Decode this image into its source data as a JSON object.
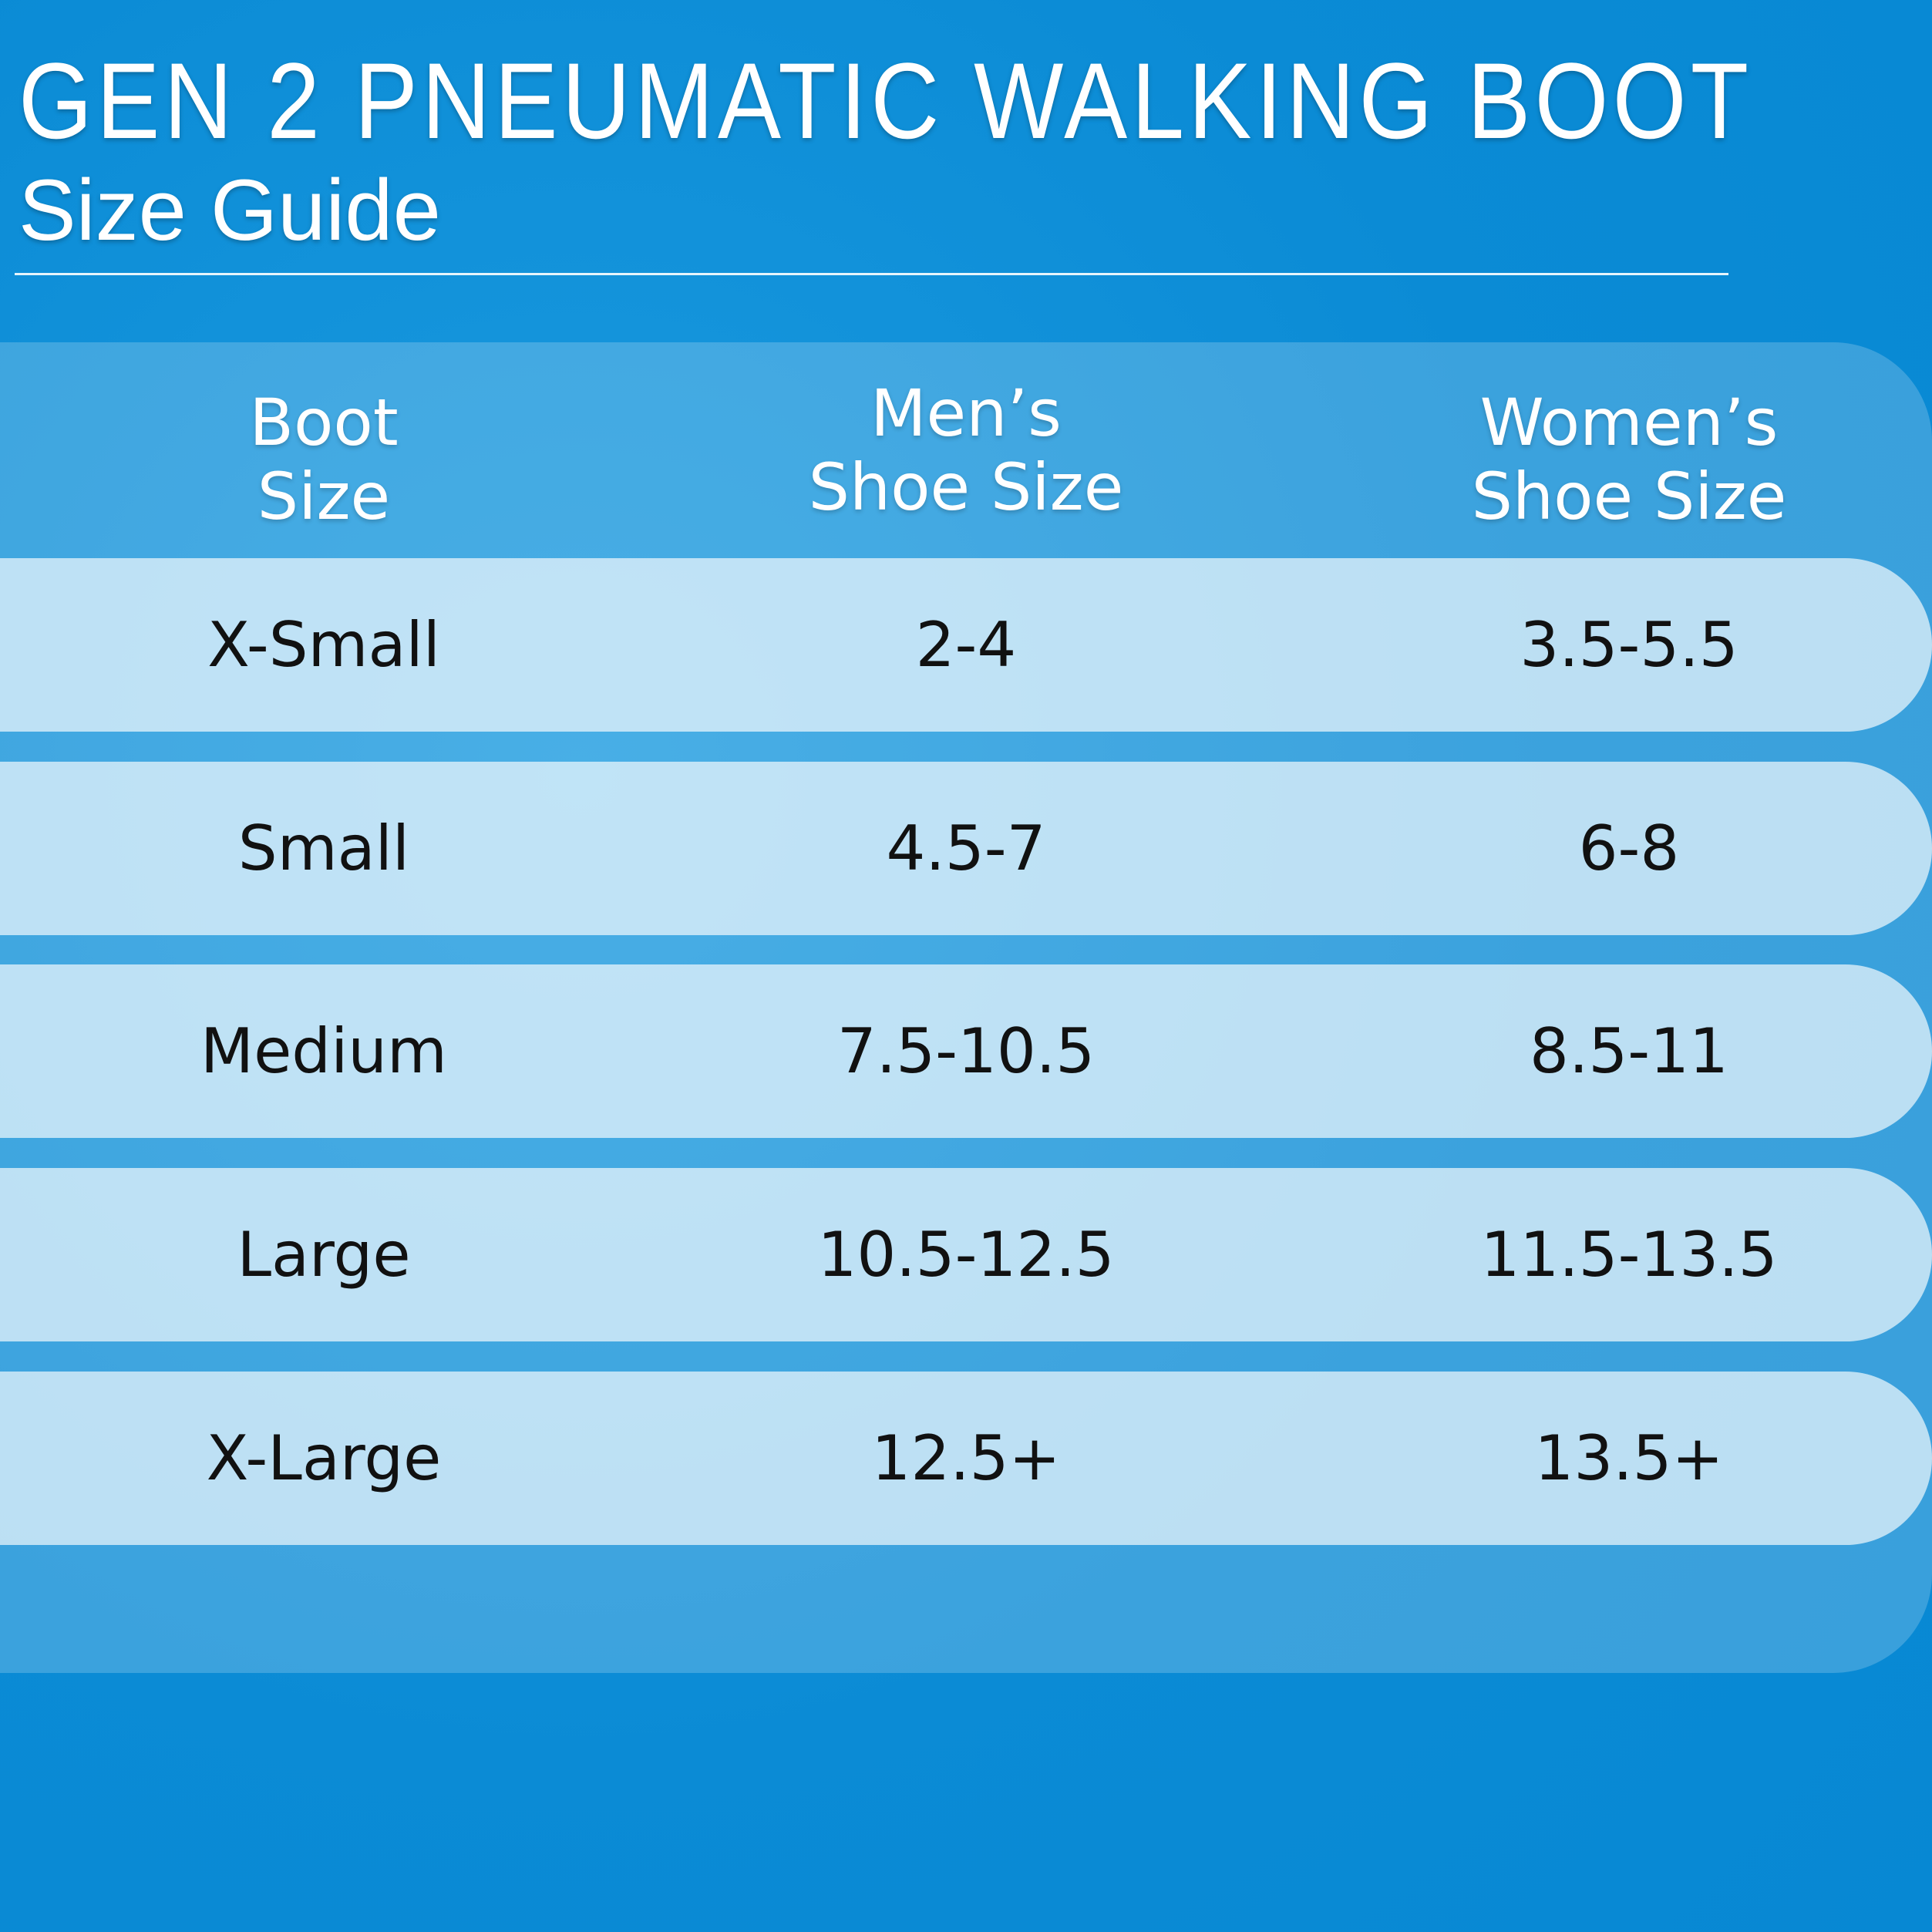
{
  "header": {
    "title": "GEN 2 PNEUMATIC WALKING BOOT",
    "subtitle": "Size Guide"
  },
  "table": {
    "columns": [
      [
        "Boot",
        "Size"
      ],
      [
        "Men’s",
        "Shoe Size"
      ],
      [
        "Women’s",
        "Shoe Size"
      ]
    ],
    "rows": [
      [
        "X-Small",
        "2-4",
        "3.5-5.5"
      ],
      [
        "Small",
        "4.5-7",
        "6-8"
      ],
      [
        "Medium",
        "7.5-10.5",
        "8.5-11"
      ],
      [
        "Large",
        "10.5-12.5",
        "11.5-13.5"
      ],
      [
        "X-Large",
        "12.5+",
        "13.5+"
      ]
    ]
  }
}
